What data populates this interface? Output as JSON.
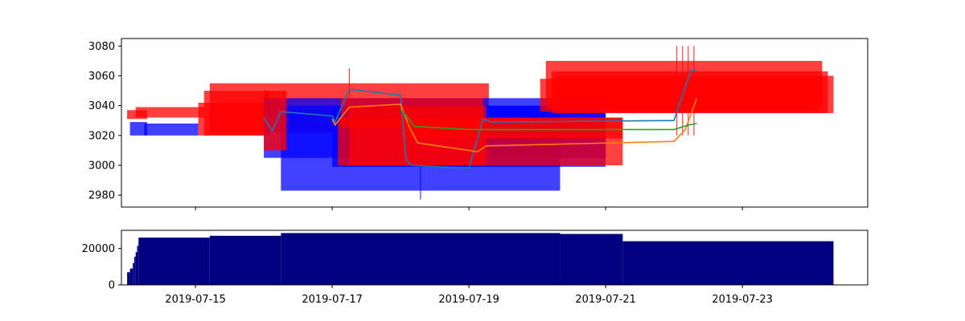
{
  "chart_data": [
    {
      "type": "candlestick",
      "title": "",
      "xlabel": "",
      "ylabel": "",
      "xlim": [
        "2019-07-13T22:00",
        "2019-07-24T20:00"
      ],
      "ylim": [
        2972,
        3085
      ],
      "y_ticks": [
        2980,
        3000,
        3020,
        3040,
        3060,
        3080
      ],
      "colors": {
        "up": "#0000ff",
        "down": "#ff0000",
        "ma_1": "#1f77b4",
        "ma_2": "#ff7f0e",
        "ma_3": "#2ca02c"
      },
      "candles": [
        {
          "t0": "2019-07-14T00:00",
          "t1": "2019-07-14T07:00",
          "open": 3037,
          "close": 3031,
          "color": "down"
        },
        {
          "t0": "2019-07-14T01:00",
          "t1": "2019-07-14T07:00",
          "open": 3020,
          "close": 3029,
          "color": "up"
        },
        {
          "t0": "2019-07-14T03:00",
          "t1": "2019-07-15T03:00",
          "open": 3039,
          "close": 3032,
          "color": "down"
        },
        {
          "t0": "2019-07-14T06:00",
          "t1": "2019-07-15T01:00",
          "open": 3020,
          "close": 3028,
          "color": "up"
        },
        {
          "t0": "2019-07-15T01:00",
          "t1": "2019-07-16T00:00",
          "open": 3042,
          "close": 3020,
          "color": "down"
        },
        {
          "t0": "2019-07-15T03:00",
          "t1": "2019-07-16T02:00",
          "open": 3050,
          "close": 3020,
          "color": "down"
        },
        {
          "t0": "2019-07-15T05:00",
          "t1": "2019-07-19T07:00",
          "open": 3055,
          "close": 3022,
          "color": "down"
        },
        {
          "t0": "2019-07-16T00:00",
          "t1": "2019-07-21T00:00",
          "open": 3005,
          "close": 3045,
          "color": "up"
        },
        {
          "t0": "2019-07-16T06:00",
          "t1": "2019-07-20T08:00",
          "open": 2983,
          "close": 3040,
          "color": "up"
        },
        {
          "t0": "2019-07-16T00:00",
          "t1": "2019-07-16T08:00",
          "open": 3050,
          "close": 3010,
          "color": "down"
        },
        {
          "t0": "2019-07-17T00:00",
          "t1": "2019-07-21T00:00",
          "open": 2999,
          "close": 3040,
          "color": "up"
        },
        {
          "t0": "2019-07-17T06:00",
          "t1": "2019-07-19T06:00",
          "open": 3040,
          "close": 3000,
          "color": "down"
        },
        {
          "t0": "2019-07-17T03:00",
          "t1": "2019-07-19T05:00",
          "open": 3045,
          "close": 3025,
          "color": "down"
        },
        {
          "t0": "2019-07-17T02:00",
          "t1": "2019-07-21T06:00",
          "open": 3032,
          "close": 3000,
          "color": "down"
        },
        {
          "t0": "2019-07-18T01:00",
          "t1": "2019-07-21T06:00",
          "open": 3032,
          "close": 3018,
          "color": "down"
        },
        {
          "t0": "2019-07-20T01:00",
          "t1": "2019-07-24T02:00",
          "open": 3058,
          "close": 3036,
          "color": "down"
        },
        {
          "t0": "2019-07-20T03:00",
          "t1": "2019-07-24T04:00",
          "open": 3070,
          "close": 3038,
          "color": "down"
        },
        {
          "t0": "2019-07-20T05:00",
          "t1": "2019-07-24T06:00",
          "open": 3063,
          "close": 3035,
          "color": "down"
        },
        {
          "t0": "2019-07-20T07:00",
          "t1": "2019-07-24T08:00",
          "open": 3060,
          "close": 3035,
          "color": "down"
        }
      ],
      "wicks": [
        {
          "t": "2019-07-16T01:00",
          "low": 3010,
          "high": 3050,
          "color": "down"
        },
        {
          "t": "2019-07-16T03:00",
          "low": 3010,
          "high": 3050,
          "color": "down"
        },
        {
          "t": "2019-07-16T05:00",
          "low": 3010,
          "high": 3050,
          "color": "down"
        },
        {
          "t": "2019-07-16T07:00",
          "low": 3010,
          "high": 3050,
          "color": "down"
        },
        {
          "t": "2019-07-17T06:00",
          "low": 3030,
          "high": 3065,
          "color": "down"
        },
        {
          "t": "2019-07-18T01:00",
          "low": 3000,
          "high": 3038,
          "color": "down"
        },
        {
          "t": "2019-07-18T03:00",
          "low": 3000,
          "high": 3038,
          "color": "down"
        },
        {
          "t": "2019-07-18T05:00",
          "low": 3000,
          "high": 3038,
          "color": "down"
        },
        {
          "t": "2019-07-18T07:00",
          "low": 2977,
          "high": 3000,
          "color": "up"
        },
        {
          "t": "2019-07-19T04:00",
          "low": 3000,
          "high": 3030,
          "color": "down"
        },
        {
          "t": "2019-07-19T06:00",
          "low": 3000,
          "high": 3030,
          "color": "down"
        },
        {
          "t": "2019-07-22T01:00",
          "low": 3020,
          "high": 3080,
          "color": "down"
        },
        {
          "t": "2019-07-22T03:00",
          "low": 3020,
          "high": 3080,
          "color": "down"
        },
        {
          "t": "2019-07-22T05:00",
          "low": 3020,
          "high": 3080,
          "color": "down"
        },
        {
          "t": "2019-07-22T07:00",
          "low": 3020,
          "high": 3080,
          "color": "down"
        }
      ],
      "series": [
        {
          "key": "ma_1",
          "points": [
            [
              "2019-07-16T00:00",
              3032
            ],
            [
              "2019-07-16T03:00",
              3023
            ],
            [
              "2019-07-16T06:00",
              3036
            ],
            [
              "2019-07-17T00:00",
              3033
            ],
            [
              "2019-07-17T01:00",
              3029
            ],
            [
              "2019-07-17T06:00",
              3051
            ],
            [
              "2019-07-18T00:00",
              3047
            ],
            [
              "2019-07-18T02:00",
              3003
            ],
            [
              "2019-07-18T04:00",
              3000
            ],
            [
              "2019-07-19T00:00",
              2998
            ],
            [
              "2019-07-19T05:00",
              3031
            ],
            [
              "2019-07-19T08:00",
              3029
            ],
            [
              "2019-07-22T00:00",
              3030
            ],
            [
              "2019-07-22T06:00",
              3064
            ],
            [
              "2019-07-22T08:00",
              3064
            ]
          ]
        },
        {
          "key": "ma_2",
          "points": [
            [
              "2019-07-17T00:00",
              3031
            ],
            [
              "2019-07-17T01:00",
              3027
            ],
            [
              "2019-07-17T06:00",
              3039
            ],
            [
              "2019-07-18T00:00",
              3041
            ],
            [
              "2019-07-18T03:00",
              3026
            ],
            [
              "2019-07-18T06:00",
              3015
            ],
            [
              "2019-07-19T00:00",
              3010
            ],
            [
              "2019-07-19T03:00",
              3009
            ],
            [
              "2019-07-19T06:00",
              3013
            ],
            [
              "2019-07-22T00:00",
              3016
            ],
            [
              "2019-07-22T04:00",
              3024
            ],
            [
              "2019-07-22T08:00",
              3045
            ]
          ]
        },
        {
          "key": "ma_3",
          "points": [
            [
              "2019-07-18T00:00",
              3038
            ],
            [
              "2019-07-18T05:00",
              3026
            ],
            [
              "2019-07-19T00:00",
              3024
            ],
            [
              "2019-07-19T06:00",
              3024
            ],
            [
              "2019-07-22T00:00",
              3024
            ],
            [
              "2019-07-22T05:00",
              3027
            ],
            [
              "2019-07-22T08:00",
              3028
            ]
          ]
        }
      ]
    },
    {
      "type": "bar",
      "title": "",
      "xlabel": "",
      "ylabel": "",
      "xlim": [
        "2019-07-13T22:00",
        "2019-07-24T20:00"
      ],
      "ylim": [
        0,
        30000
      ],
      "y_ticks": [
        0,
        20000
      ],
      "x_ticks": [
        "2019-07-15",
        "2019-07-17",
        "2019-07-19",
        "2019-07-21",
        "2019-07-23"
      ],
      "color": "#000080",
      "bars": [
        {
          "t0": "2019-07-14T00:00",
          "t1": "2019-07-14T01:00",
          "value": 7000
        },
        {
          "t0": "2019-07-14T01:00",
          "t1": "2019-07-14T02:00",
          "value": 9000
        },
        {
          "t0": "2019-07-14T02:00",
          "t1": "2019-07-14T02:30",
          "value": 12000
        },
        {
          "t0": "2019-07-14T02:30",
          "t1": "2019-07-14T03:00",
          "value": 15500
        },
        {
          "t0": "2019-07-14T03:00",
          "t1": "2019-07-14T03:30",
          "value": 18000
        },
        {
          "t0": "2019-07-14T03:30",
          "t1": "2019-07-14T04:00",
          "value": 21500
        },
        {
          "t0": "2019-07-14T04:00",
          "t1": "2019-07-15T05:00",
          "value": 26000
        },
        {
          "t0": "2019-07-15T05:00",
          "t1": "2019-07-16T06:00",
          "value": 27000
        },
        {
          "t0": "2019-07-16T06:00",
          "t1": "2019-07-20T08:00",
          "value": 28500
        },
        {
          "t0": "2019-07-20T08:00",
          "t1": "2019-07-21T06:00",
          "value": 28000
        },
        {
          "t0": "2019-07-21T06:00",
          "t1": "2019-07-24T08:00",
          "value": 24000
        }
      ]
    }
  ]
}
